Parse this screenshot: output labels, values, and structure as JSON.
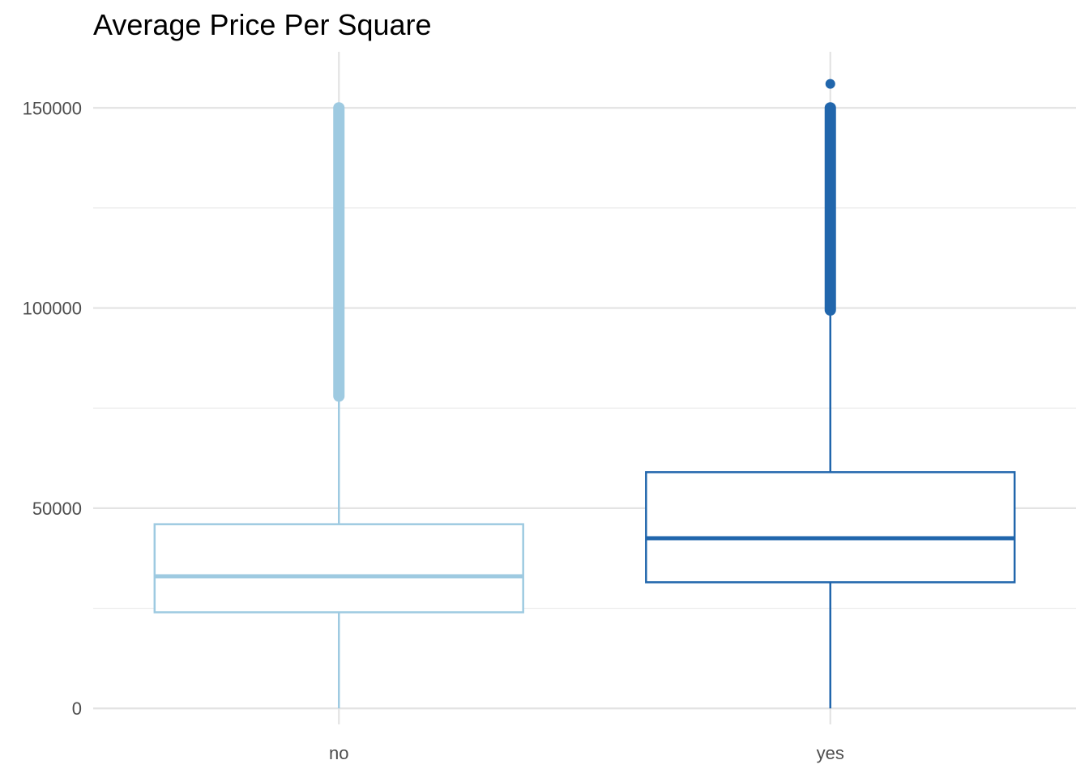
{
  "chart_data": {
    "type": "boxplot",
    "title": "Average Price Per Square",
    "xlabel": "",
    "ylabel": "",
    "categories": [
      "no",
      "yes"
    ],
    "ylim": [
      -4000,
      164000
    ],
    "y_ticks": [
      0,
      50000,
      100000,
      150000
    ],
    "y_tick_labels": [
      "0",
      "50000",
      "100000",
      "150000"
    ],
    "grid": true,
    "legend": "none",
    "boxes": [
      {
        "category": "no",
        "color": "#9ecae1",
        "whisker_low": 0,
        "q1": 24000,
        "median": 33000,
        "q3": 46000,
        "whisker_high": 78000,
        "outliers_range": [
          78000,
          150000
        ],
        "outliers": []
      },
      {
        "category": "yes",
        "color": "#2166ac",
        "whisker_low": 0,
        "q1": 31500,
        "median": 42500,
        "q3": 59000,
        "whisker_high": 99500,
        "outliers_range": [
          99500,
          150000
        ],
        "outliers": [
          156000
        ]
      }
    ]
  }
}
